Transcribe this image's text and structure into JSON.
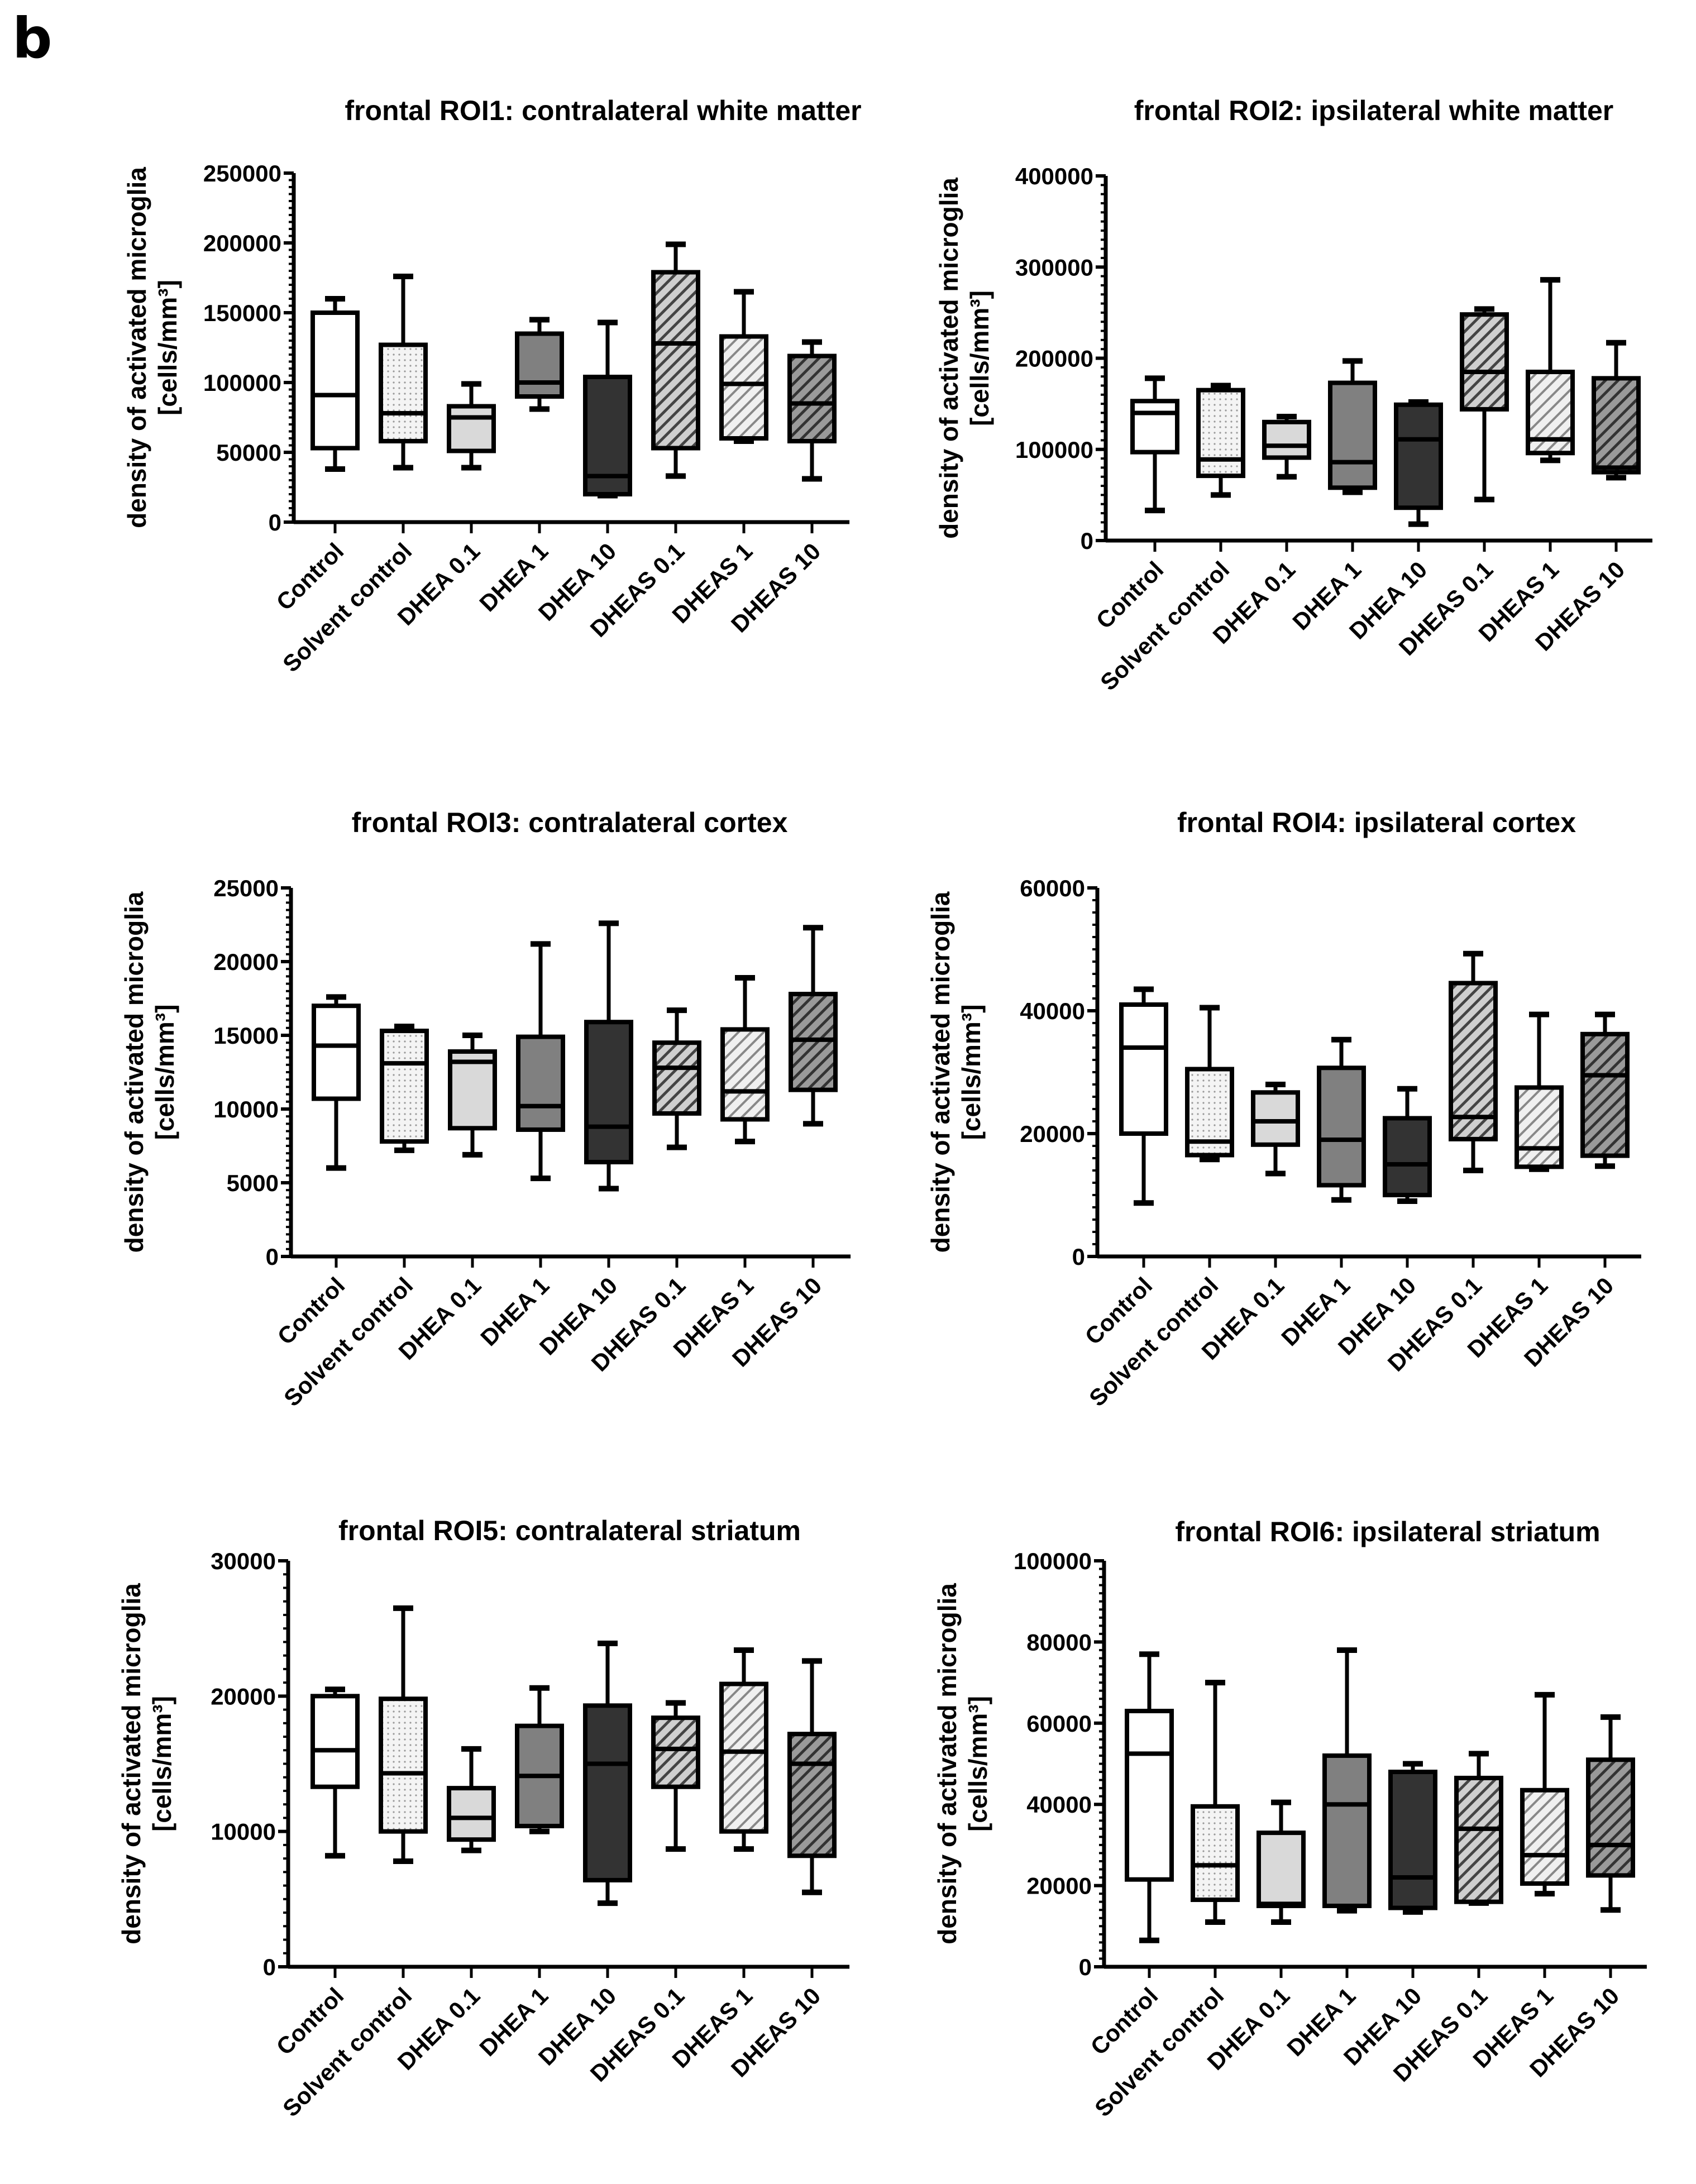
{
  "figure_label": "b",
  "chart_data": [
    {
      "type": "box",
      "title": "frontal ROI1: contralateral white matter",
      "ylabel": "density of activated microglia",
      "ylabel2": "[cells/mm³]",
      "ylim": [
        0,
        250000
      ],
      "yticks": [
        0,
        50000,
        100000,
        150000,
        200000,
        250000
      ],
      "categories": [
        "Control",
        "Solvent control",
        "DHEA 0.1",
        "DHEA 1",
        "DHEA 10",
        "DHEAS 0.1",
        "DHEAS 1",
        "DHEAS 10"
      ],
      "boxes": [
        [
          38000,
          53000,
          91000,
          150000,
          160000
        ],
        [
          39000,
          58000,
          78000,
          127000,
          176000
        ],
        [
          39000,
          51000,
          75000,
          83000,
          99000
        ],
        [
          81000,
          90000,
          100000,
          135000,
          145000
        ],
        [
          19000,
          20000,
          33000,
          104000,
          143000
        ],
        [
          33000,
          53000,
          128000,
          179000,
          199000
        ],
        [
          58000,
          60000,
          99000,
          133000,
          165000
        ],
        [
          31000,
          58000,
          85000,
          119000,
          129000
        ]
      ]
    },
    {
      "type": "box",
      "title": "frontal ROI2: ipsilateral white matter",
      "ylabel": "density of activated microglia",
      "ylabel2": "[cells/mm³]",
      "ylim": [
        0,
        400000
      ],
      "yticks": [
        0,
        100000,
        200000,
        300000,
        400000
      ],
      "categories": [
        "Control",
        "Solvent control",
        "DHEA 0.1",
        "DHEA 1",
        "DHEA 10",
        "DHEAS 0.1",
        "DHEAS 1",
        "DHEAS 10"
      ],
      "boxes": [
        [
          33000,
          97000,
          140000,
          153000,
          178000
        ],
        [
          50000,
          71000,
          89000,
          165000,
          170000
        ],
        [
          70000,
          91000,
          104000,
          130000,
          136000
        ],
        [
          53000,
          58000,
          86000,
          173000,
          197000
        ],
        [
          18000,
          36000,
          111000,
          149000,
          152000
        ],
        [
          45000,
          144000,
          185000,
          248000,
          254000
        ],
        [
          88000,
          96000,
          111000,
          185000,
          286000
        ],
        [
          69000,
          75000,
          80000,
          178000,
          217000
        ]
      ]
    },
    {
      "type": "box",
      "title": "frontal ROI3: contralateral cortex",
      "ylabel": "density of activated microglia",
      "ylabel2": "[cells/mm³]",
      "ylim": [
        0,
        25000
      ],
      "yticks": [
        0,
        5000,
        10000,
        15000,
        20000,
        25000
      ],
      "categories": [
        "Control",
        "Solvent control",
        "DHEA 0.1",
        "DHEA 1",
        "DHEA 10",
        "DHEAS 0.1",
        "DHEAS 1",
        "DHEAS 10"
      ],
      "boxes": [
        [
          6000,
          10700,
          14300,
          17000,
          17600
        ],
        [
          7200,
          7800,
          13100,
          15300,
          15600
        ],
        [
          6900,
          8700,
          13200,
          13900,
          15000
        ],
        [
          5300,
          8600,
          10200,
          14900,
          21200
        ],
        [
          4600,
          6400,
          8800,
          15900,
          22600
        ],
        [
          7400,
          9700,
          12800,
          14500,
          16700
        ],
        [
          7800,
          9300,
          11200,
          15400,
          18900
        ],
        [
          9000,
          11300,
          14700,
          17800,
          22300
        ]
      ]
    },
    {
      "type": "box",
      "title": "frontal ROI4: ipsilateral cortex",
      "ylabel": "density of activated microglia",
      "ylabel2": "[cells/mm³]",
      "ylim": [
        0,
        60000
      ],
      "yticks": [
        0,
        20000,
        40000,
        60000
      ],
      "categories": [
        "Control",
        "Solvent control",
        "DHEA 0.1",
        "DHEA 1",
        "DHEA 10",
        "DHEAS 0.1",
        "DHEAS 1",
        "DHEAS 10"
      ],
      "boxes": [
        [
          8700,
          20000,
          34000,
          41000,
          43500
        ],
        [
          15800,
          16500,
          18700,
          30500,
          40500
        ],
        [
          13500,
          18200,
          22000,
          26700,
          28000
        ],
        [
          9200,
          11600,
          19000,
          30700,
          35300
        ],
        [
          9000,
          10000,
          15000,
          22500,
          27300
        ],
        [
          14000,
          19100,
          22700,
          44500,
          49300
        ],
        [
          14200,
          14600,
          17600,
          27500,
          39400
        ],
        [
          14700,
          16400,
          29500,
          36200,
          39400
        ]
      ]
    },
    {
      "type": "box",
      "title": "frontal ROI5: contralateral striatum",
      "ylabel": "density of activated microglia",
      "ylabel2": "[cells/mm³]",
      "ylim": [
        0,
        30000
      ],
      "yticks": [
        0,
        10000,
        20000,
        30000
      ],
      "categories": [
        "Control",
        "Solvent control",
        "DHEA 0.1",
        "DHEA 1",
        "DHEA 10",
        "DHEAS 0.1",
        "DHEAS 1",
        "DHEAS 10"
      ],
      "boxes": [
        [
          8200,
          13300,
          16000,
          20000,
          20500
        ],
        [
          7800,
          10000,
          14300,
          19800,
          26500
        ],
        [
          8600,
          9400,
          11000,
          13200,
          16100
        ],
        [
          10000,
          10400,
          14100,
          17800,
          20600
        ],
        [
          4700,
          6400,
          15000,
          19300,
          23900
        ],
        [
          8700,
          13300,
          16100,
          18400,
          19500
        ],
        [
          8700,
          10000,
          15900,
          20900,
          23400
        ],
        [
          5500,
          8200,
          15000,
          17200,
          22600
        ]
      ]
    },
    {
      "type": "box",
      "title": "frontal ROI6: ipsilateral striatum",
      "ylabel": "density of activated microglia",
      "ylabel2": "[cells/mm³]",
      "ylim": [
        0,
        100000
      ],
      "yticks": [
        0,
        20000,
        40000,
        60000,
        80000,
        100000
      ],
      "categories": [
        "Control",
        "Solvent control",
        "DHEA 0.1",
        "DHEA 1",
        "DHEA 10",
        "DHEAS 0.1",
        "DHEAS 1",
        "DHEAS 10"
      ],
      "boxes": [
        [
          6500,
          21500,
          52500,
          63000,
          77000
        ],
        [
          11000,
          16500,
          25000,
          39500,
          70000
        ],
        [
          11000,
          15000,
          15500,
          33000,
          40500
        ],
        [
          13800,
          15000,
          40000,
          52000,
          78000
        ],
        [
          13500,
          14500,
          22000,
          48000,
          50000
        ],
        [
          15700,
          16000,
          34000,
          46500,
          52500
        ],
        [
          18000,
          20500,
          27500,
          43500,
          67000
        ],
        [
          14000,
          22500,
          30000,
          51000,
          61500
        ]
      ]
    }
  ],
  "group_fills": [
    "#ffffff",
    "url(#dots)",
    "#d9d9d9",
    "#808080",
    "#333333",
    "url(#hatchMid)",
    "url(#hatchLight)",
    "url(#hatchDark)"
  ]
}
